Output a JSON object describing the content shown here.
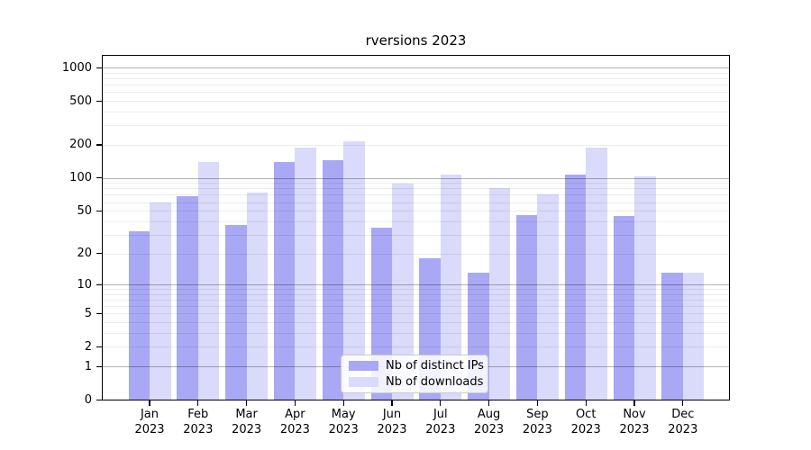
{
  "title": "rversions 2023",
  "colors": {
    "background": "#ffffff",
    "spine": "#000000",
    "text": "#000000",
    "grid_major": "#b3b3b3",
    "grid_minor": "#ececec",
    "series_dark": "#a8a8f5",
    "series_light": "#dadafa"
  },
  "chart_data": {
    "type": "bar",
    "title": "rversions 2023",
    "categories": [
      "Jan",
      "Feb",
      "Mar",
      "Apr",
      "May",
      "Jun",
      "Jul",
      "Aug",
      "Sep",
      "Oct",
      "Nov",
      "Dec"
    ],
    "year": "2023",
    "series": [
      {
        "name": "Nb of distinct IPs",
        "color": "#a8a8f5",
        "values": [
          32,
          68,
          37,
          140,
          144,
          35,
          18,
          13,
          46,
          108,
          45,
          13
        ]
      },
      {
        "name": "Nb of downloads",
        "color": "#dadafa",
        "values": [
          60,
          140,
          74,
          190,
          217,
          88,
          108,
          80,
          71,
          187,
          104,
          13
        ]
      }
    ],
    "y_scale": "log1p",
    "y_ticks": [
      0,
      1,
      2,
      5,
      10,
      20,
      50,
      100,
      200,
      500,
      1000
    ],
    "ylim": [
      0,
      1280
    ],
    "grid": {
      "major": [
        1,
        10,
        100,
        1000
      ],
      "minor": [
        2,
        3,
        4,
        5,
        6,
        7,
        8,
        9,
        20,
        30,
        40,
        50,
        60,
        70,
        80,
        90,
        200,
        300,
        400,
        500,
        600,
        700,
        800,
        900
      ]
    },
    "legend": {
      "position": "lower-center"
    }
  }
}
